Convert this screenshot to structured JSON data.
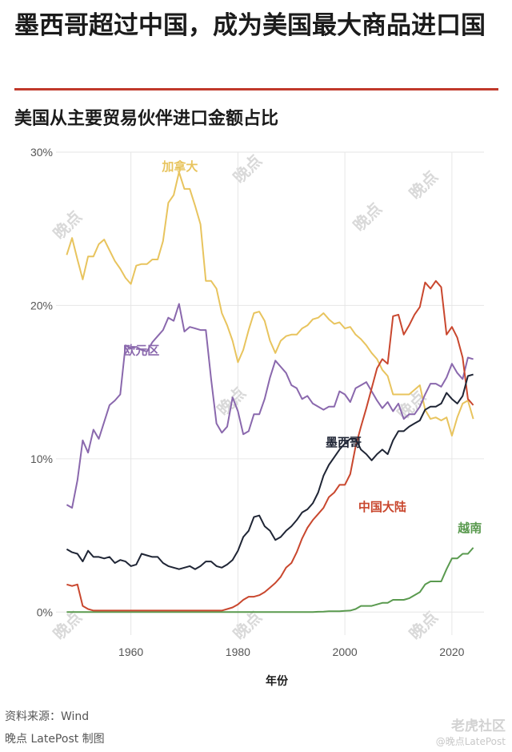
{
  "header": {
    "title": "墨西哥超过中国，成为美国最大商品进口国",
    "subtitle": "美国从主要贸易伙伴进口金额占比"
  },
  "footer": {
    "source": "资料来源：Wind",
    "credit": "晚点 LatePost 制图",
    "corner_brand": "老虎社区",
    "corner_handle": "@晚点LatePost"
  },
  "watermark": {
    "text": "晚点",
    "sub": "LATE POST"
  },
  "chart_data": {
    "type": "line",
    "title": "美国从主要贸易伙伴进口金额占比",
    "xlabel": "年份",
    "ylabel": "",
    "xlim": [
      1946,
      2026
    ],
    "ylim": [
      -1.5,
      30
    ],
    "xticks": [
      1960,
      1980,
      2000,
      2020
    ],
    "yticks": [
      0,
      10,
      20,
      30
    ],
    "ytick_labels": [
      "0%",
      "10%",
      "20%",
      "30%"
    ],
    "grid": true,
    "legend": "inline labels",
    "series": [
      {
        "name": "加拿大",
        "color": "#e8c45e",
        "x": [
          1948,
          1949,
          1950,
          1951,
          1952,
          1953,
          1954,
          1955,
          1956,
          1957,
          1958,
          1959,
          1960,
          1961,
          1962,
          1963,
          1964,
          1965,
          1966,
          1967,
          1968,
          1969,
          1970,
          1971,
          1972,
          1973,
          1974,
          1975,
          1976,
          1977,
          1978,
          1979,
          1980,
          1981,
          1982,
          1983,
          1984,
          1985,
          1986,
          1987,
          1988,
          1989,
          1990,
          1991,
          1992,
          1993,
          1994,
          1995,
          1996,
          1997,
          1998,
          1999,
          2000,
          2001,
          2002,
          2003,
          2004,
          2005,
          2006,
          2007,
          2008,
          2009,
          2010,
          2011,
          2012,
          2013,
          2014,
          2015,
          2016,
          2017,
          2018,
          2019,
          2020,
          2021,
          2022,
          2023,
          2024
        ],
        "values": [
          23.3,
          24.4,
          23.0,
          21.7,
          23.2,
          23.2,
          24.0,
          24.3,
          23.6,
          22.9,
          22.4,
          21.8,
          21.4,
          22.6,
          22.7,
          22.7,
          23.0,
          23.0,
          24.2,
          26.7,
          27.2,
          28.7,
          27.6,
          27.6,
          26.5,
          25.3,
          21.6,
          21.6,
          21.1,
          19.5,
          18.7,
          17.7,
          16.3,
          17.1,
          18.4,
          19.5,
          19.6,
          19.0,
          17.7,
          16.9,
          17.7,
          18.0,
          18.1,
          18.1,
          18.5,
          18.7,
          19.1,
          19.2,
          19.5,
          19.1,
          18.8,
          18.9,
          18.5,
          18.6,
          18.1,
          17.8,
          17.4,
          16.9,
          16.5,
          15.8,
          15.4,
          14.2,
          14.2,
          14.2,
          14.2,
          14.5,
          14.8,
          13.2,
          12.6,
          12.7,
          12.5,
          12.7,
          11.5,
          12.7,
          13.6,
          13.8,
          12.6
        ]
      },
      {
        "name": "欧元区",
        "color": "#8a68ad",
        "x": [
          1948,
          1949,
          1950,
          1951,
          1952,
          1953,
          1954,
          1955,
          1956,
          1957,
          1958,
          1959,
          1960,
          1961,
          1962,
          1963,
          1964,
          1965,
          1966,
          1967,
          1968,
          1969,
          1970,
          1971,
          1972,
          1973,
          1974,
          1975,
          1976,
          1977,
          1978,
          1979,
          1980,
          1981,
          1982,
          1983,
          1984,
          1985,
          1986,
          1987,
          1988,
          1989,
          1990,
          1991,
          1992,
          1993,
          1994,
          1995,
          1996,
          1997,
          1998,
          1999,
          2000,
          2001,
          2002,
          2003,
          2004,
          2005,
          2006,
          2007,
          2008,
          2009,
          2010,
          2011,
          2012,
          2013,
          2014,
          2015,
          2016,
          2017,
          2018,
          2019,
          2020,
          2021,
          2022,
          2023,
          2024
        ],
        "values": [
          7.0,
          6.8,
          8.6,
          11.2,
          10.4,
          11.9,
          11.3,
          12.4,
          13.5,
          13.8,
          14.2,
          17.4,
          17.2,
          17.3,
          17.1,
          17.0,
          17.6,
          18.0,
          18.4,
          19.2,
          19.0,
          20.1,
          18.3,
          18.6,
          18.5,
          18.4,
          18.4,
          15.2,
          12.3,
          11.7,
          12.1,
          14.0,
          13.1,
          11.6,
          11.8,
          12.9,
          12.9,
          13.9,
          15.3,
          16.4,
          16.0,
          15.6,
          14.8,
          14.6,
          13.9,
          14.1,
          13.6,
          13.4,
          13.2,
          13.4,
          13.4,
          14.4,
          14.2,
          13.7,
          14.6,
          14.8,
          15.0,
          14.4,
          13.8,
          13.3,
          13.7,
          13.1,
          13.6,
          12.6,
          12.9,
          12.9,
          13.4,
          14.2,
          14.9,
          14.9,
          14.7,
          15.3,
          16.2,
          15.6,
          15.2,
          16.6,
          16.5
        ]
      },
      {
        "name": "墨西哥",
        "color": "#1f2535",
        "x": [
          1948,
          1949,
          1950,
          1951,
          1952,
          1953,
          1954,
          1955,
          1956,
          1957,
          1958,
          1959,
          1960,
          1961,
          1962,
          1963,
          1964,
          1965,
          1966,
          1967,
          1968,
          1969,
          1970,
          1971,
          1972,
          1973,
          1974,
          1975,
          1976,
          1977,
          1978,
          1979,
          1980,
          1981,
          1982,
          1983,
          1984,
          1985,
          1986,
          1987,
          1988,
          1989,
          1990,
          1991,
          1992,
          1993,
          1994,
          1995,
          1996,
          1997,
          1998,
          1999,
          2000,
          2001,
          2002,
          2003,
          2004,
          2005,
          2006,
          2007,
          2008,
          2009,
          2010,
          2011,
          2012,
          2013,
          2014,
          2015,
          2016,
          2017,
          2018,
          2019,
          2020,
          2021,
          2022,
          2023,
          2024
        ],
        "values": [
          4.1,
          3.9,
          3.8,
          3.3,
          4.0,
          3.6,
          3.6,
          3.5,
          3.6,
          3.2,
          3.4,
          3.3,
          3.0,
          3.1,
          3.8,
          3.7,
          3.6,
          3.6,
          3.2,
          3.0,
          2.9,
          2.8,
          2.9,
          3.0,
          2.8,
          3.0,
          3.3,
          3.3,
          3.0,
          2.9,
          3.1,
          3.4,
          4.0,
          4.9,
          5.3,
          6.2,
          6.3,
          5.6,
          5.3,
          4.7,
          4.9,
          5.3,
          5.6,
          6.0,
          6.5,
          6.7,
          7.1,
          7.8,
          8.9,
          9.6,
          10.1,
          10.6,
          11.0,
          11.3,
          11.3,
          10.6,
          10.3,
          9.9,
          10.3,
          10.6,
          10.3,
          11.2,
          11.8,
          11.8,
          12.1,
          12.3,
          12.5,
          13.2,
          13.4,
          13.4,
          13.6,
          14.3,
          13.9,
          13.6,
          14.1,
          15.4,
          15.5
        ]
      },
      {
        "name": "中国大陆",
        "color": "#c9472e",
        "x": [
          1948,
          1949,
          1950,
          1951,
          1952,
          1953,
          1954,
          1955,
          1956,
          1957,
          1958,
          1959,
          1960,
          1961,
          1962,
          1963,
          1964,
          1965,
          1966,
          1967,
          1968,
          1969,
          1970,
          1971,
          1972,
          1973,
          1974,
          1975,
          1976,
          1977,
          1978,
          1979,
          1980,
          1981,
          1982,
          1983,
          1984,
          1985,
          1986,
          1987,
          1988,
          1989,
          1990,
          1991,
          1992,
          1993,
          1994,
          1995,
          1996,
          1997,
          1998,
          1999,
          2000,
          2001,
          2002,
          2003,
          2004,
          2005,
          2006,
          2007,
          2008,
          2009,
          2010,
          2011,
          2012,
          2013,
          2014,
          2015,
          2016,
          2017,
          2018,
          2019,
          2020,
          2021,
          2022,
          2023,
          2024
        ],
        "values": [
          1.8,
          1.7,
          1.8,
          0.4,
          0.2,
          0.1,
          0.1,
          0.1,
          0.1,
          0.1,
          0.1,
          0.1,
          0.1,
          0.1,
          0.1,
          0.1,
          0.1,
          0.1,
          0.1,
          0.1,
          0.1,
          0.1,
          0.1,
          0.1,
          0.1,
          0.1,
          0.1,
          0.1,
          0.1,
          0.1,
          0.2,
          0.3,
          0.5,
          0.8,
          1.0,
          1.0,
          1.1,
          1.3,
          1.6,
          1.9,
          2.3,
          2.9,
          3.2,
          3.9,
          4.8,
          5.5,
          6.0,
          6.4,
          6.8,
          7.5,
          7.8,
          8.3,
          8.3,
          9.0,
          10.8,
          12.1,
          13.3,
          14.6,
          15.9,
          16.5,
          16.2,
          19.3,
          19.4,
          18.1,
          18.7,
          19.4,
          19.9,
          21.5,
          21.1,
          21.6,
          21.2,
          18.1,
          18.6,
          17.9,
          16.6,
          13.9,
          13.5
        ]
      },
      {
        "name": "越南",
        "color": "#5a9a4f",
        "x": [
          1948,
          1949,
          1950,
          1951,
          1952,
          1953,
          1954,
          1955,
          1956,
          1957,
          1958,
          1959,
          1960,
          1961,
          1962,
          1963,
          1964,
          1965,
          1966,
          1967,
          1968,
          1969,
          1970,
          1971,
          1972,
          1973,
          1974,
          1975,
          1976,
          1977,
          1978,
          1979,
          1980,
          1981,
          1982,
          1983,
          1984,
          1985,
          1986,
          1987,
          1988,
          1989,
          1990,
          1991,
          1992,
          1993,
          1994,
          1995,
          1996,
          1997,
          1998,
          1999,
          2000,
          2001,
          2002,
          2003,
          2004,
          2005,
          2006,
          2007,
          2008,
          2009,
          2010,
          2011,
          2012,
          2013,
          2014,
          2015,
          2016,
          2017,
          2018,
          2019,
          2020,
          2021,
          2022,
          2023,
          2024
        ],
        "values": [
          0,
          0,
          0,
          0,
          0,
          0,
          0,
          0,
          0,
          0,
          0,
          0,
          0,
          0,
          0,
          0,
          0,
          0,
          0,
          0,
          0,
          0,
          0,
          0,
          0,
          0,
          0,
          0,
          0,
          0,
          0,
          0,
          0,
          0,
          0,
          0,
          0,
          0,
          0,
          0,
          0,
          0,
          0,
          0,
          0,
          0,
          0,
          0.02,
          0.03,
          0.05,
          0.05,
          0.05,
          0.08,
          0.1,
          0.2,
          0.4,
          0.4,
          0.4,
          0.5,
          0.6,
          0.6,
          0.8,
          0.8,
          0.8,
          0.9,
          1.1,
          1.3,
          1.8,
          2.0,
          2.0,
          2.0,
          2.8,
          3.5,
          3.5,
          3.8,
          3.8,
          4.2
        ]
      }
    ],
    "labels": [
      {
        "series": "加拿大",
        "text": "加拿大",
        "x": 1965.8,
        "y": 28.8
      },
      {
        "series": "欧元区",
        "text": "欧元区",
        "x": 1958.6,
        "y": 16.8
      },
      {
        "series": "墨西哥",
        "text": "墨西哥",
        "x": 1996.4,
        "y": 10.8
      },
      {
        "series": "中国大陆",
        "text": "中国大陆",
        "x": 2002.5,
        "y": 6.6
      },
      {
        "series": "越南",
        "text": "越南",
        "x": 2021.1,
        "y": 5.2
      }
    ]
  }
}
